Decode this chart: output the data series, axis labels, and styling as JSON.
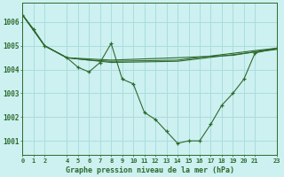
{
  "title": "Graphe pression niveau de la mer (hPa)",
  "bg_color": "#cdf0f0",
  "grid_color": "#aadddd",
  "line_color": "#2d6a2d",
  "xlim": [
    0,
    23
  ],
  "ylim": [
    1000.4,
    1006.8
  ],
  "xticks": [
    0,
    1,
    2,
    4,
    5,
    6,
    7,
    8,
    9,
    10,
    11,
    12,
    13,
    14,
    15,
    16,
    17,
    18,
    19,
    20,
    21,
    23
  ],
  "yticks": [
    1001,
    1002,
    1003,
    1004,
    1005,
    1006
  ],
  "series_main": [
    [
      0,
      1006.3
    ],
    [
      1,
      1005.7
    ],
    [
      2,
      1005.0
    ],
    [
      4,
      1004.5
    ],
    [
      5,
      1004.1
    ],
    [
      6,
      1003.9
    ],
    [
      7,
      1004.3
    ],
    [
      8,
      1005.1
    ],
    [
      9,
      1003.6
    ],
    [
      10,
      1003.4
    ],
    [
      11,
      1002.2
    ],
    [
      12,
      1001.9
    ],
    [
      13,
      1001.4
    ],
    [
      14,
      1000.9
    ],
    [
      15,
      1001.0
    ],
    [
      16,
      1001.0
    ],
    [
      17,
      1001.7
    ],
    [
      18,
      1002.5
    ],
    [
      19,
      1003.0
    ],
    [
      20,
      1003.6
    ],
    [
      21,
      1004.7
    ],
    [
      23,
      1004.9
    ]
  ],
  "series_flat1": [
    [
      0,
      1006.3
    ],
    [
      2,
      1005.0
    ],
    [
      4,
      1004.5
    ],
    [
      6,
      1004.45
    ],
    [
      8,
      1004.4
    ],
    [
      14,
      1004.5
    ],
    [
      19,
      1004.6
    ],
    [
      21,
      1004.75
    ],
    [
      23,
      1004.9
    ]
  ],
  "series_flat2": [
    [
      0,
      1006.3
    ],
    [
      2,
      1005.0
    ],
    [
      4,
      1004.5
    ],
    [
      6,
      1004.4
    ],
    [
      8,
      1004.35
    ],
    [
      14,
      1004.4
    ],
    [
      21,
      1004.8
    ],
    [
      23,
      1004.9
    ]
  ],
  "series_flat3": [
    [
      0,
      1006.3
    ],
    [
      2,
      1005.0
    ],
    [
      4,
      1004.5
    ],
    [
      8,
      1004.3
    ],
    [
      14,
      1004.35
    ],
    [
      23,
      1004.85
    ]
  ]
}
